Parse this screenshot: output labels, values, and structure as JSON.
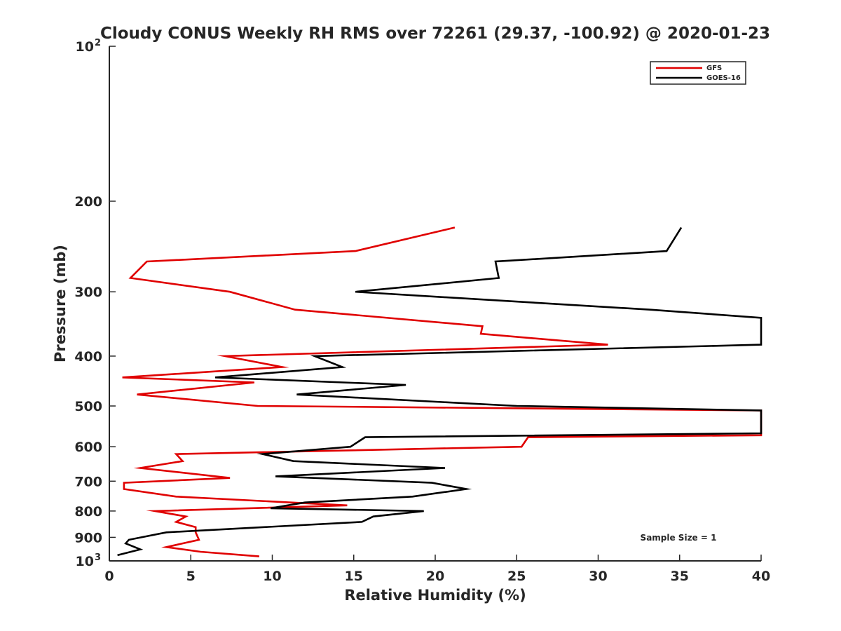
{
  "chart_data": {
    "type": "line",
    "title": "Cloudy CONUS Weekly RH RMS over 72261 (29.37, -100.92) @ 2020-01-23",
    "xlabel": "Relative Humidity (%)",
    "ylabel": "Pressure (mb)",
    "xlim": [
      0,
      40
    ],
    "ylim": [
      100,
      1000
    ],
    "yscale": "log",
    "y_reversed": true,
    "grid": false,
    "legend_position": "top-right",
    "annotation": "Sample Size = 1",
    "x_ticks": [
      "0",
      "5",
      "10",
      "15",
      "20",
      "25",
      "30",
      "35",
      "40"
    ],
    "y_ticks": [
      {
        "value": 200,
        "label": "200"
      },
      {
        "value": 300,
        "label": "300"
      },
      {
        "value": 400,
        "label": "400"
      },
      {
        "value": 500,
        "label": "500"
      },
      {
        "value": 600,
        "label": "600"
      },
      {
        "value": 700,
        "label": "700"
      },
      {
        "value": 800,
        "label": "800"
      },
      {
        "value": 900,
        "label": "900"
      }
    ],
    "y_tick_top": {
      "value": 100,
      "base": "10",
      "exp": "2"
    },
    "y_tick_bottom": {
      "value": 1000,
      "base": "10",
      "exp": "3"
    },
    "series": [
      {
        "name": "GFS",
        "color": "#e00000",
        "points": [
          [
            21.2,
            225
          ],
          [
            15.1,
            250
          ],
          [
            2.3,
            262
          ],
          [
            1.3,
            282
          ],
          [
            7.4,
            300
          ],
          [
            11.4,
            325
          ],
          [
            22.9,
            350
          ],
          [
            22.8,
            362
          ],
          [
            30.6,
            380
          ],
          [
            7.1,
            400
          ],
          [
            10.6,
            420
          ],
          [
            0.8,
            440
          ],
          [
            8.9,
            450
          ],
          [
            1.7,
            475
          ],
          [
            9.1,
            500
          ],
          [
            40.0,
            510
          ],
          [
            40.0,
            570
          ],
          [
            25.7,
            575
          ],
          [
            25.3,
            600
          ],
          [
            4.1,
            620
          ],
          [
            4.5,
            640
          ],
          [
            1.9,
            660
          ],
          [
            7.4,
            690
          ],
          [
            0.9,
            705
          ],
          [
            0.9,
            725
          ],
          [
            4.1,
            750
          ],
          [
            14.6,
            780
          ],
          [
            2.8,
            800
          ],
          [
            4.7,
            820
          ],
          [
            4.1,
            840
          ],
          [
            5.3,
            860
          ],
          [
            5.3,
            880
          ],
          [
            5.5,
            910
          ],
          [
            3.5,
            940
          ],
          [
            5.6,
            960
          ],
          [
            9.2,
            980
          ]
        ]
      },
      {
        "name": "GOES-16",
        "color": "#000000",
        "points": [
          [
            35.1,
            225
          ],
          [
            34.2,
            250
          ],
          [
            23.7,
            262
          ],
          [
            23.9,
            282
          ],
          [
            15.1,
            300
          ],
          [
            33.2,
            325
          ],
          [
            40.0,
            337
          ],
          [
            40.0,
            380
          ],
          [
            12.6,
            400
          ],
          [
            14.3,
            420
          ],
          [
            6.5,
            440
          ],
          [
            18.2,
            455
          ],
          [
            11.5,
            475
          ],
          [
            25.0,
            500
          ],
          [
            40.0,
            510
          ],
          [
            40.0,
            565
          ],
          [
            15.7,
            575
          ],
          [
            14.8,
            600
          ],
          [
            9.4,
            620
          ],
          [
            11.3,
            640
          ],
          [
            20.6,
            660
          ],
          [
            10.2,
            685
          ],
          [
            19.8,
            705
          ],
          [
            21.9,
            725
          ],
          [
            18.6,
            750
          ],
          [
            12.0,
            770
          ],
          [
            9.9,
            790
          ],
          [
            19.3,
            800
          ],
          [
            16.2,
            820
          ],
          [
            15.5,
            840
          ],
          [
            3.5,
            880
          ],
          [
            1.2,
            910
          ],
          [
            1.0,
            925
          ],
          [
            1.9,
            950
          ],
          [
            0.5,
            975
          ]
        ]
      }
    ]
  }
}
